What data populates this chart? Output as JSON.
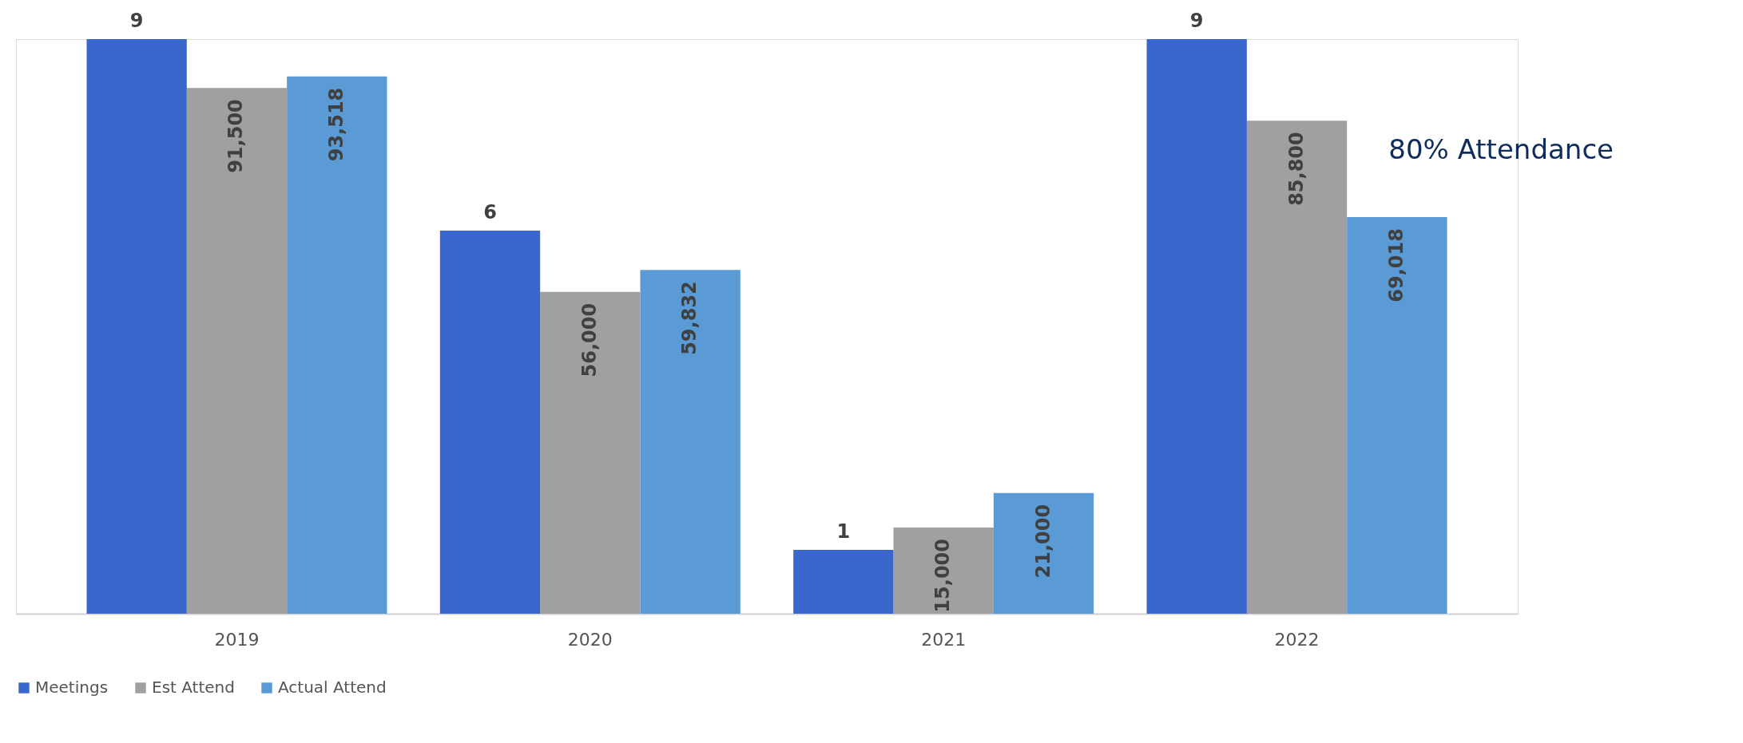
{
  "chart_data": {
    "type": "bar",
    "categories": [
      "2019",
      "2020",
      "2021",
      "2022"
    ],
    "series": [
      {
        "name": "Meetings",
        "color": "#3a67cc",
        "values": [
          9,
          6,
          1,
          9
        ],
        "axis": "y2",
        "value_labels": [
          "9",
          "6",
          "1",
          "9"
        ]
      },
      {
        "name": "Est Attend",
        "color": "#a0a0a0",
        "values": [
          91500,
          56000,
          15000,
          85800
        ],
        "value_labels": [
          "91,500",
          "56,000",
          "15,000",
          "85,800"
        ]
      },
      {
        "name": "Actual Attend",
        "color": "#5b9bd5",
        "values": [
          93518,
          59832,
          21000,
          69018
        ],
        "value_labels": [
          "93,518",
          "59,832",
          "21,000",
          "69,018"
        ]
      }
    ],
    "grid": false,
    "legend": "bottom",
    "tick_labels": "x",
    "annotations": [
      "80% Attendance"
    ]
  }
}
